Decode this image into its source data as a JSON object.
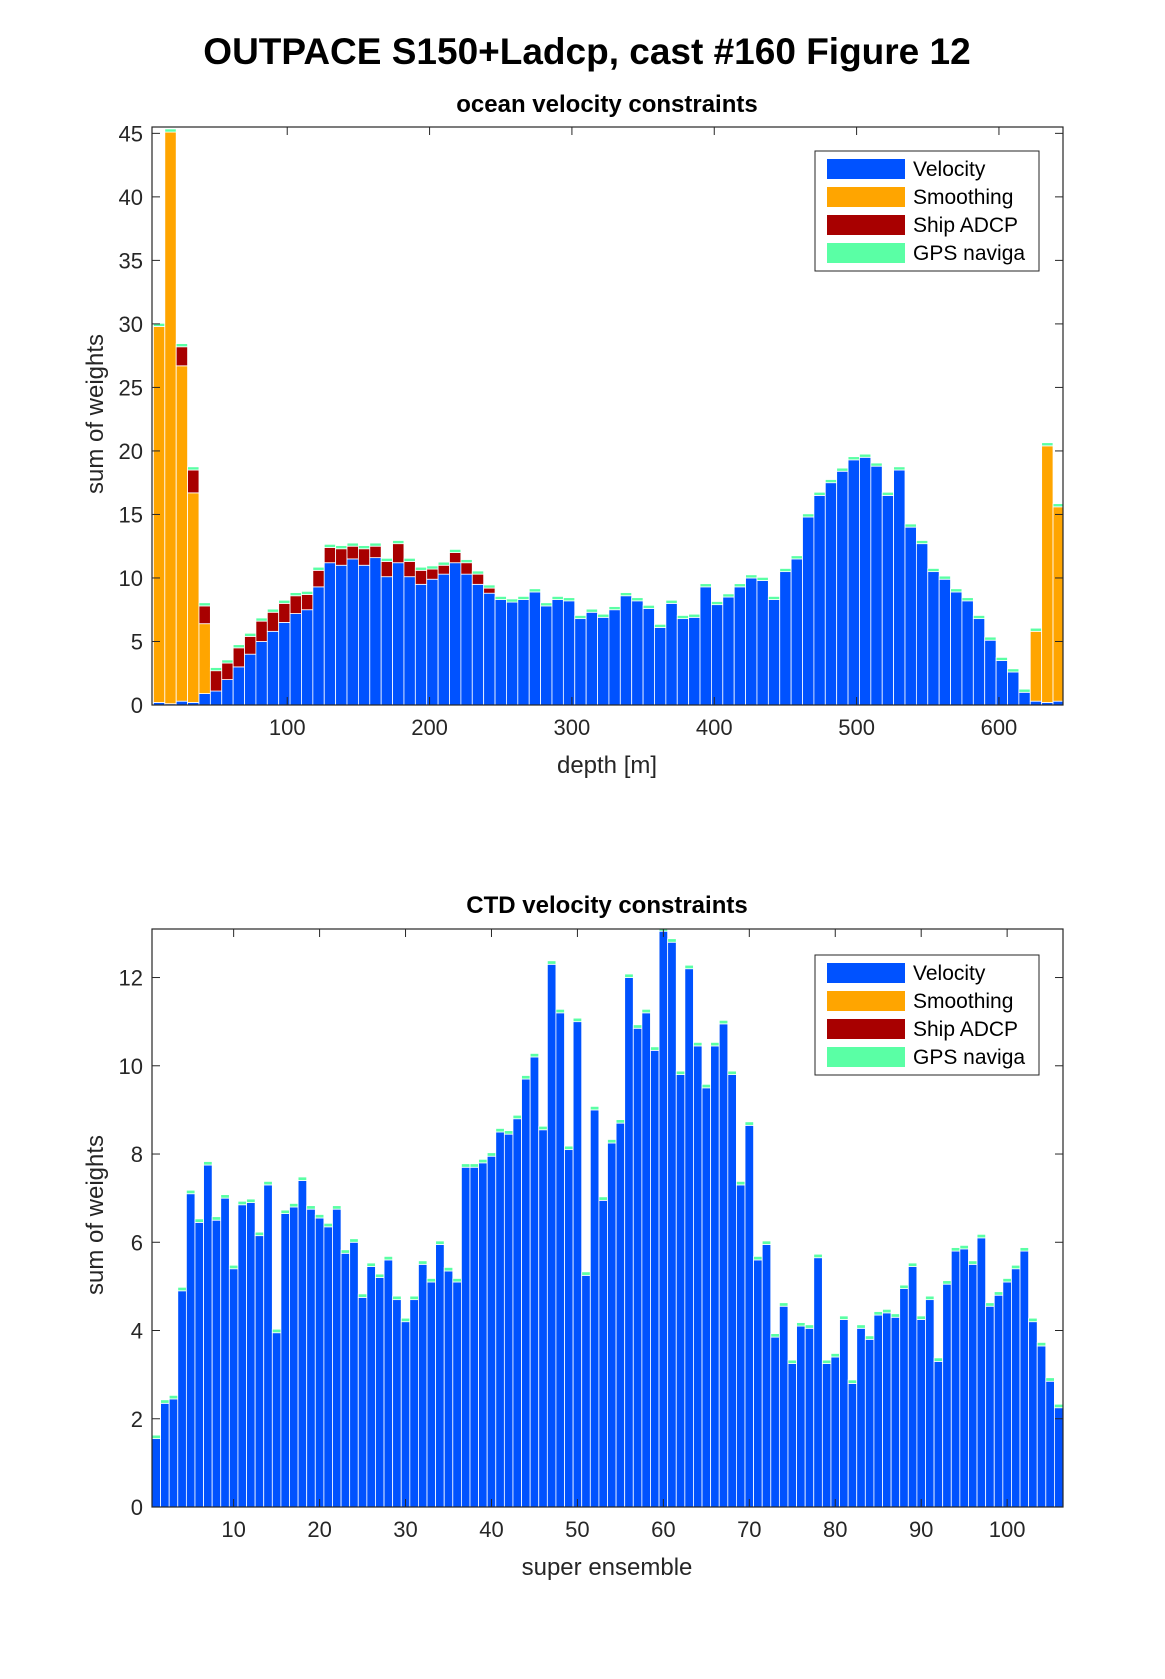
{
  "figure_title": "OUTPACE S150+Ladcp, cast #160  Figure 12",
  "colors": {
    "velocity": "#0052ff",
    "smoothing": "#ffa500",
    "ship_adcp": "#a80000",
    "gps": "#5affa5"
  },
  "chart_data": [
    {
      "type": "bar",
      "stacked": true,
      "title": "ocean velocity constraints",
      "xlabel": "depth [m]",
      "ylabel": "sum of weights",
      "xlim": [
        5,
        645
      ],
      "ylim": [
        0,
        45.5
      ],
      "xticks": [
        100,
        200,
        300,
        400,
        500,
        600
      ],
      "yticks": [
        0,
        5,
        10,
        15,
        20,
        25,
        30,
        35,
        40,
        45
      ],
      "legend": [
        "Velocity",
        "Smoothing",
        "Ship ADCP",
        "GPS naviga"
      ],
      "legend_position": "top-right",
      "bin_width": 8,
      "x": [
        10,
        18,
        26,
        34,
        42,
        50,
        58,
        66,
        74,
        82,
        90,
        98,
        106,
        114,
        122,
        130,
        138,
        146,
        154,
        162,
        170,
        178,
        186,
        194,
        202,
        210,
        218,
        226,
        234,
        242,
        250,
        258,
        266,
        274,
        282,
        290,
        298,
        306,
        314,
        322,
        330,
        338,
        346,
        354,
        362,
        370,
        378,
        386,
        394,
        402,
        410,
        418,
        426,
        434,
        442,
        450,
        458,
        466,
        474,
        482,
        490,
        498,
        506,
        514,
        522,
        530,
        538,
        546,
        554,
        562,
        570,
        578,
        586,
        594,
        602,
        610,
        618,
        626,
        634,
        642
      ],
      "series": [
        {
          "name": "Velocity",
          "values": [
            0.2,
            0.1,
            0.3,
            0.2,
            0.9,
            1.1,
            2.0,
            3.0,
            4.0,
            5.0,
            5.8,
            6.5,
            7.2,
            7.5,
            9.3,
            11.2,
            11.0,
            11.5,
            11.0,
            11.6,
            10.1,
            11.2,
            10.1,
            9.5,
            9.9,
            10.3,
            11.2,
            10.3,
            9.5,
            8.8,
            8.3,
            8.1,
            8.3,
            8.9,
            7.8,
            8.3,
            8.2,
            6.8,
            7.3,
            6.9,
            7.5,
            8.6,
            8.2,
            7.6,
            6.1,
            8.0,
            6.8,
            6.9,
            9.3,
            7.9,
            8.5,
            9.3,
            10.0,
            9.8,
            8.3,
            10.5,
            11.5,
            14.8,
            16.5,
            17.5,
            18.4,
            19.3,
            19.5,
            18.8,
            16.5,
            18.5,
            14.0,
            12.7,
            10.5,
            9.9,
            8.9,
            8.2,
            6.8,
            5.1,
            3.5,
            2.6,
            1.0,
            0.3,
            0.2,
            0.3
          ]
        },
        {
          "name": "Smoothing",
          "values": [
            29.6,
            45.0,
            26.4,
            16.5,
            5.5,
            0,
            0,
            0,
            0,
            0,
            0,
            0,
            0,
            0,
            0,
            0,
            0,
            0,
            0,
            0,
            0,
            0,
            0,
            0,
            0,
            0,
            0,
            0,
            0,
            0,
            0,
            0,
            0,
            0,
            0,
            0,
            0,
            0,
            0,
            0,
            0,
            0,
            0,
            0,
            0,
            0,
            0,
            0,
            0,
            0,
            0,
            0,
            0,
            0,
            0,
            0,
            0,
            0,
            0,
            0,
            0,
            0,
            0,
            0,
            0,
            0,
            0,
            0,
            0,
            0,
            0,
            0,
            0,
            0,
            0,
            0,
            0,
            5.5,
            20.2,
            15.3
          ]
        },
        {
          "name": "Ship ADCP",
          "values": [
            0,
            0,
            1.5,
            1.8,
            1.4,
            1.6,
            1.3,
            1.5,
            1.4,
            1.6,
            1.5,
            1.5,
            1.4,
            1.2,
            1.3,
            1.2,
            1.3,
            1.0,
            1.3,
            0.9,
            1.2,
            1.5,
            1.2,
            1.1,
            0.8,
            0.7,
            0.8,
            0.9,
            0.8,
            0.4,
            0,
            0,
            0,
            0,
            0,
            0,
            0,
            0,
            0,
            0,
            0,
            0,
            0,
            0,
            0,
            0,
            0,
            0,
            0,
            0,
            0,
            0,
            0,
            0,
            0,
            0,
            0,
            0,
            0,
            0,
            0,
            0,
            0,
            0,
            0,
            0,
            0,
            0,
            0,
            0,
            0,
            0,
            0,
            0,
            0,
            0,
            0,
            0,
            0,
            0
          ]
        },
        {
          "name": "GPS naviga",
          "values": [
            0.25,
            0.25,
            0.25,
            0.25,
            0.25,
            0.25,
            0.25,
            0.25,
            0.25,
            0.25,
            0.25,
            0.25,
            0.25,
            0.25,
            0.25,
            0.25,
            0.25,
            0.25,
            0.25,
            0.25,
            0.25,
            0.25,
            0.25,
            0.25,
            0.25,
            0.25,
            0.25,
            0.25,
            0.25,
            0.25,
            0.25,
            0.25,
            0.25,
            0.25,
            0.25,
            0.25,
            0.25,
            0.25,
            0.25,
            0.25,
            0.25,
            0.25,
            0.25,
            0.25,
            0.25,
            0.25,
            0.25,
            0.25,
            0.25,
            0.25,
            0.25,
            0.25,
            0.25,
            0.25,
            0.25,
            0.25,
            0.25,
            0.25,
            0.25,
            0.25,
            0.25,
            0.25,
            0.25,
            0.25,
            0.25,
            0.25,
            0.25,
            0.25,
            0.25,
            0.25,
            0.25,
            0.25,
            0.25,
            0.25,
            0.25,
            0.25,
            0.25,
            0.25,
            0.25,
            0.25
          ]
        }
      ]
    },
    {
      "type": "bar",
      "stacked": true,
      "title": "CTD velocity constraints",
      "xlabel": "super ensemble",
      "ylabel": "sum of weights",
      "xlim": [
        0.5,
        106.5
      ],
      "ylim": [
        0,
        13.1
      ],
      "xticks": [
        10,
        20,
        30,
        40,
        50,
        60,
        70,
        80,
        90,
        100
      ],
      "yticks": [
        0,
        2,
        4,
        6,
        8,
        10,
        12
      ],
      "legend": [
        "Velocity",
        "Smoothing",
        "Ship ADCP",
        "GPS naviga"
      ],
      "legend_position": "top-right",
      "x_start": 1,
      "series": [
        {
          "name": "Velocity",
          "values": [
            1.55,
            2.35,
            2.45,
            4.9,
            7.1,
            6.45,
            7.75,
            6.5,
            7.0,
            5.4,
            6.85,
            6.9,
            6.15,
            7.3,
            3.95,
            6.65,
            6.8,
            7.4,
            6.75,
            6.55,
            6.35,
            6.75,
            5.75,
            6.0,
            4.75,
            5.45,
            5.2,
            5.6,
            4.7,
            4.2,
            4.7,
            5.5,
            5.1,
            5.95,
            5.35,
            5.1,
            7.7,
            7.7,
            7.8,
            7.95,
            8.5,
            8.45,
            8.8,
            9.7,
            10.2,
            8.55,
            12.3,
            11.2,
            8.1,
            11.0,
            5.25,
            9.0,
            6.95,
            8.25,
            8.7,
            12.0,
            10.85,
            11.2,
            10.35,
            13.05,
            12.8,
            9.8,
            12.2,
            10.45,
            9.5,
            10.45,
            10.95,
            9.8,
            7.3,
            8.65,
            5.6,
            5.95,
            3.85,
            4.55,
            3.25,
            4.1,
            4.05,
            5.65,
            3.25,
            3.4,
            4.25,
            2.8,
            4.05,
            3.8,
            4.35,
            4.4,
            4.3,
            4.95,
            5.45,
            4.25,
            4.7,
            3.3,
            5.05,
            5.8,
            5.85,
            5.5,
            6.1,
            4.55,
            4.8,
            5.1,
            5.4,
            5.8,
            4.2,
            3.65,
            2.85,
            2.25
          ]
        },
        {
          "name": "Smoothing",
          "values": [
            0,
            0,
            0,
            0,
            0,
            0,
            0,
            0,
            0,
            0,
            0,
            0,
            0,
            0,
            0,
            0,
            0,
            0,
            0,
            0,
            0,
            0,
            0,
            0,
            0,
            0,
            0,
            0,
            0,
            0,
            0,
            0,
            0,
            0,
            0,
            0,
            0,
            0,
            0,
            0,
            0,
            0,
            0,
            0,
            0,
            0,
            0,
            0,
            0,
            0,
            0,
            0,
            0,
            0,
            0,
            0,
            0,
            0,
            0,
            0,
            0,
            0,
            0,
            0,
            0,
            0,
            0,
            0,
            0,
            0,
            0,
            0,
            0,
            0,
            0,
            0,
            0,
            0,
            0,
            0,
            0,
            0,
            0,
            0,
            0,
            0,
            0,
            0,
            0,
            0,
            0,
            0,
            0,
            0,
            0,
            0,
            0,
            0,
            0,
            0,
            0,
            0,
            0,
            0,
            0,
            0
          ]
        },
        {
          "name": "Ship ADCP",
          "values": [
            0,
            0,
            0,
            0,
            0,
            0,
            0,
            0,
            0,
            0,
            0,
            0,
            0,
            0,
            0,
            0,
            0,
            0,
            0,
            0,
            0,
            0,
            0,
            0,
            0,
            0,
            0,
            0,
            0,
            0,
            0,
            0,
            0,
            0,
            0,
            0,
            0,
            0,
            0,
            0,
            0,
            0,
            0,
            0,
            0,
            0,
            0,
            0,
            0,
            0,
            0,
            0,
            0,
            0,
            0,
            0,
            0,
            0,
            0,
            0,
            0,
            0,
            0,
            0,
            0,
            0,
            0,
            0,
            0,
            0,
            0,
            0,
            0,
            0,
            0,
            0,
            0,
            0,
            0,
            0,
            0,
            0,
            0,
            0,
            0,
            0,
            0,
            0,
            0,
            0,
            0,
            0,
            0,
            0,
            0,
            0,
            0,
            0,
            0,
            0,
            0,
            0,
            0,
            0,
            0,
            0
          ]
        },
        {
          "name": "GPS naviga",
          "values": [
            0.08,
            0.08,
            0.08,
            0.08,
            0.08,
            0.08,
            0.08,
            0.08,
            0.08,
            0.08,
            0.08,
            0.08,
            0.08,
            0.08,
            0.08,
            0.08,
            0.08,
            0.08,
            0.08,
            0.08,
            0.08,
            0.08,
            0.08,
            0.08,
            0.08,
            0.08,
            0.08,
            0.08,
            0.08,
            0.08,
            0.08,
            0.08,
            0.08,
            0.08,
            0.08,
            0.08,
            0.08,
            0.08,
            0.08,
            0.08,
            0.08,
            0.08,
            0.08,
            0.08,
            0.08,
            0.08,
            0.08,
            0.08,
            0.08,
            0.08,
            0.08,
            0.08,
            0.08,
            0.08,
            0.08,
            0.08,
            0.08,
            0.08,
            0.08,
            0.08,
            0.08,
            0.08,
            0.08,
            0.08,
            0.08,
            0.08,
            0.08,
            0.08,
            0.08,
            0.08,
            0.08,
            0.08,
            0.08,
            0.08,
            0.08,
            0.08,
            0.08,
            0.08,
            0.08,
            0.08,
            0.08,
            0.08,
            0.08,
            0.08,
            0.08,
            0.08,
            0.08,
            0.08,
            0.08,
            0.08,
            0.08,
            0.08,
            0.08,
            0.08,
            0.08,
            0.08,
            0.08,
            0.08,
            0.08,
            0.08,
            0.08,
            0.08,
            0.08,
            0.08,
            0.08,
            0.08
          ]
        }
      ]
    }
  ]
}
